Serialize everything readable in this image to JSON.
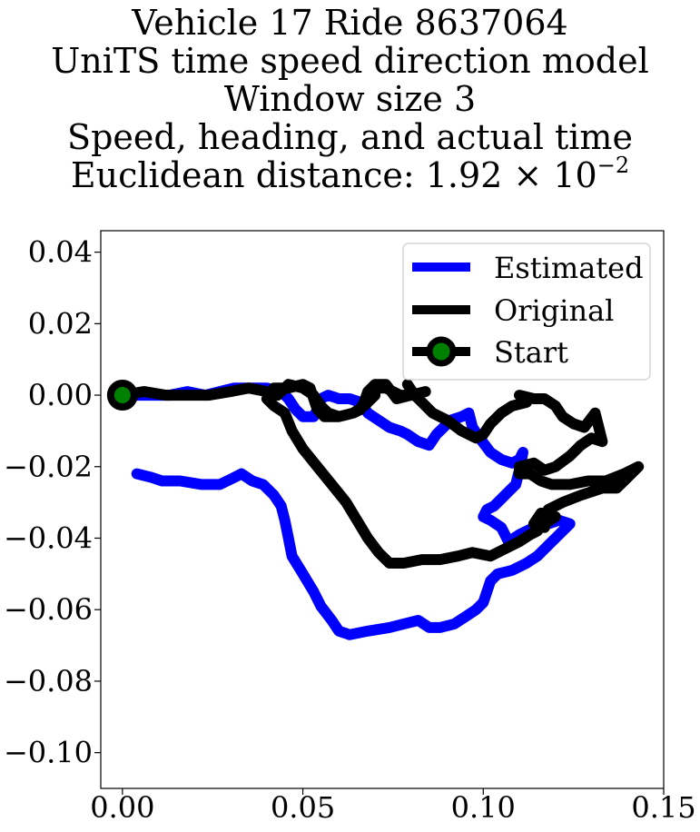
{
  "chart_data": {
    "type": "line",
    "title_lines": [
      "Vehicle 17 Ride 8637064",
      "UniTS time speed direction model",
      "Window size 3",
      "Speed, heading, and actual time"
    ],
    "distance_label": "Euclidean distance: 1.92 × 10",
    "distance_exponent": "−2",
    "xlim": [
      -0.006,
      0.15
    ],
    "ylim": [
      -0.11,
      0.046
    ],
    "xticks": [
      0.0,
      0.05,
      0.1,
      0.15
    ],
    "xtick_labels": [
      "0.00",
      "0.05",
      "0.10",
      "0.15"
    ],
    "yticks": [
      0.04,
      0.02,
      0.0,
      -0.02,
      -0.04,
      -0.06,
      -0.08,
      -0.1
    ],
    "ytick_labels": [
      "0.04",
      "0.02",
      "0.00",
      "−0.02",
      "−0.04",
      "−0.06",
      "−0.08",
      "−0.10"
    ],
    "grid": false,
    "legend_position": "top-right",
    "series": [
      {
        "name": "Estimated",
        "color": "#0000ff",
        "points": [
          [
            0.004,
            -0.022
          ],
          [
            0.008,
            -0.023
          ],
          [
            0.011,
            -0.024
          ],
          [
            0.016,
            -0.024
          ],
          [
            0.022,
            -0.025
          ],
          [
            0.027,
            -0.025
          ],
          [
            0.031,
            -0.023
          ],
          [
            0.033,
            -0.022
          ],
          [
            0.036,
            -0.024
          ],
          [
            0.039,
            -0.025
          ],
          [
            0.042,
            -0.028
          ],
          [
            0.044,
            -0.031
          ],
          [
            0.045,
            -0.035
          ],
          [
            0.046,
            -0.04
          ],
          [
            0.047,
            -0.045
          ],
          [
            0.05,
            -0.05
          ],
          [
            0.053,
            -0.055
          ],
          [
            0.055,
            -0.059
          ],
          [
            0.058,
            -0.063
          ],
          [
            0.06,
            -0.066
          ],
          [
            0.063,
            -0.067
          ],
          [
            0.068,
            -0.066
          ],
          [
            0.074,
            -0.065
          ],
          [
            0.078,
            -0.064
          ],
          [
            0.082,
            -0.063
          ],
          [
            0.085,
            -0.065
          ],
          [
            0.088,
            -0.065
          ],
          [
            0.092,
            -0.064
          ],
          [
            0.095,
            -0.062
          ],
          [
            0.098,
            -0.06
          ],
          [
            0.1,
            -0.058
          ],
          [
            0.101,
            -0.055
          ],
          [
            0.102,
            -0.052
          ],
          [
            0.104,
            -0.05
          ],
          [
            0.108,
            -0.049
          ],
          [
            0.112,
            -0.047
          ],
          [
            0.115,
            -0.045
          ],
          [
            0.118,
            -0.042
          ],
          [
            0.12,
            -0.04
          ],
          [
            0.124,
            -0.036
          ],
          [
            0.121,
            -0.035
          ],
          [
            0.118,
            -0.036
          ],
          [
            0.114,
            -0.037
          ],
          [
            0.11,
            -0.039
          ],
          [
            0.107,
            -0.041
          ],
          [
            0.105,
            -0.037
          ],
          [
            0.102,
            -0.035
          ],
          [
            0.1,
            -0.034
          ],
          [
            0.101,
            -0.032
          ],
          [
            0.103,
            -0.031
          ],
          [
            0.105,
            -0.029
          ],
          [
            0.107,
            -0.027
          ],
          [
            0.109,
            -0.025
          ],
          [
            0.11,
            -0.021
          ],
          [
            0.111,
            -0.016
          ],
          [
            0.11,
            -0.018
          ],
          [
            0.108,
            -0.019
          ],
          [
            0.105,
            -0.018
          ],
          [
            0.102,
            -0.016
          ],
          [
            0.099,
            -0.012
          ],
          [
            0.097,
            -0.009
          ],
          [
            0.096,
            -0.005
          ],
          [
            0.094,
            -0.006
          ],
          [
            0.091,
            -0.007
          ],
          [
            0.089,
            -0.009
          ],
          [
            0.087,
            -0.011
          ],
          [
            0.085,
            -0.014
          ],
          [
            0.082,
            -0.013
          ],
          [
            0.079,
            -0.011
          ],
          [
            0.077,
            -0.01
          ],
          [
            0.074,
            -0.009
          ],
          [
            0.071,
            -0.007
          ],
          [
            0.068,
            -0.005
          ],
          [
            0.066,
            -0.002
          ],
          [
            0.063,
            -0.001
          ],
          [
            0.06,
            -0.001
          ],
          [
            0.057,
            -0.0
          ],
          [
            0.055,
            -0.001
          ],
          [
            0.054,
            -0.004
          ],
          [
            0.053,
            -0.006
          ],
          [
            0.05,
            -0.006
          ],
          [
            0.048,
            -0.004
          ],
          [
            0.046,
            -0.001
          ],
          [
            0.044,
            0.001
          ],
          [
            0.04,
            0.002
          ],
          [
            0.035,
            0.002
          ],
          [
            0.031,
            0.002
          ],
          [
            0.027,
            0.001
          ],
          [
            0.023,
            0.0
          ],
          [
            0.018,
            0.001
          ],
          [
            0.013,
            0.0
          ],
          [
            0.008,
            0.0
          ],
          [
            0.004,
            0.0
          ],
          [
            0.0,
            0.0
          ]
        ]
      },
      {
        "name": "Original",
        "color": "#000000",
        "points": [
          [
            0.0,
            0.0
          ],
          [
            0.006,
            0.001
          ],
          [
            0.012,
            0.0
          ],
          [
            0.018,
            0.0
          ],
          [
            0.024,
            0.0
          ],
          [
            0.03,
            0.001
          ],
          [
            0.035,
            0.002
          ],
          [
            0.04,
            0.001
          ],
          [
            0.043,
            0.0
          ],
          [
            0.046,
            0.003
          ],
          [
            0.05,
            0.002
          ],
          [
            0.053,
            0.0
          ],
          [
            0.055,
            -0.003
          ],
          [
            0.057,
            -0.005
          ],
          [
            0.06,
            -0.006
          ],
          [
            0.064,
            -0.005
          ],
          [
            0.067,
            -0.003
          ],
          [
            0.07,
            -0.0
          ],
          [
            0.07,
            0.002
          ],
          [
            0.073,
            0.002
          ],
          [
            0.077,
            0.0
          ],
          [
            0.081,
            0.0
          ],
          [
            0.084,
            0.001
          ],
          [
            0.08,
            0.0
          ],
          [
            0.076,
            -0.001
          ],
          [
            0.073,
            0.003
          ],
          [
            0.07,
            0.003
          ],
          [
            0.068,
            0.001
          ],
          [
            0.067,
            -0.002
          ],
          [
            0.066,
            -0.004
          ],
          [
            0.064,
            -0.005
          ],
          [
            0.06,
            -0.006
          ],
          [
            0.056,
            -0.006
          ],
          [
            0.054,
            -0.004
          ],
          [
            0.053,
            -0.001
          ],
          [
            0.052,
            0.002
          ],
          [
            0.05,
            0.003
          ],
          [
            0.046,
            0.002
          ],
          [
            0.042,
            0.002
          ],
          [
            0.04,
            -0.001
          ],
          [
            0.042,
            -0.003
          ],
          [
            0.045,
            -0.005
          ],
          [
            0.047,
            -0.01
          ],
          [
            0.05,
            -0.015
          ],
          [
            0.054,
            -0.02
          ],
          [
            0.058,
            -0.025
          ],
          [
            0.062,
            -0.03
          ],
          [
            0.065,
            -0.035
          ],
          [
            0.068,
            -0.04
          ],
          [
            0.071,
            -0.044
          ],
          [
            0.074,
            -0.047
          ],
          [
            0.078,
            -0.047
          ],
          [
            0.083,
            -0.046
          ],
          [
            0.088,
            -0.046
          ],
          [
            0.093,
            -0.045
          ],
          [
            0.097,
            -0.044
          ],
          [
            0.102,
            -0.045
          ],
          [
            0.106,
            -0.043
          ],
          [
            0.11,
            -0.041
          ],
          [
            0.113,
            -0.039
          ],
          [
            0.115,
            -0.038
          ],
          [
            0.117,
            -0.035
          ],
          [
            0.12,
            -0.034
          ],
          [
            0.117,
            -0.036
          ],
          [
            0.116,
            -0.033
          ],
          [
            0.114,
            -0.036
          ],
          [
            0.117,
            -0.037
          ],
          [
            0.118,
            -0.032
          ],
          [
            0.122,
            -0.03
          ],
          [
            0.127,
            -0.028
          ],
          [
            0.133,
            -0.026
          ],
          [
            0.137,
            -0.026
          ],
          [
            0.14,
            -0.023
          ],
          [
            0.143,
            -0.02
          ],
          [
            0.139,
            -0.022
          ],
          [
            0.134,
            -0.024
          ],
          [
            0.129,
            -0.024
          ],
          [
            0.124,
            -0.025
          ],
          [
            0.119,
            -0.025
          ],
          [
            0.116,
            -0.024
          ],
          [
            0.113,
            -0.022
          ],
          [
            0.11,
            -0.022
          ],
          [
            0.11,
            -0.02
          ],
          [
            0.114,
            -0.019
          ],
          [
            0.117,
            -0.021
          ],
          [
            0.12,
            -0.02
          ],
          [
            0.124,
            -0.017
          ],
          [
            0.127,
            -0.014
          ],
          [
            0.13,
            -0.012
          ],
          [
            0.133,
            -0.013
          ],
          [
            0.132,
            -0.009
          ],
          [
            0.131,
            -0.005
          ],
          [
            0.128,
            -0.009
          ],
          [
            0.125,
            -0.008
          ],
          [
            0.122,
            -0.006
          ],
          [
            0.12,
            -0.003
          ],
          [
            0.117,
            -0.001
          ],
          [
            0.114,
            -0.001
          ],
          [
            0.11,
            0.0
          ],
          [
            0.112,
            -0.002
          ],
          [
            0.108,
            -0.003
          ],
          [
            0.105,
            -0.005
          ],
          [
            0.102,
            -0.008
          ],
          [
            0.1,
            -0.011
          ],
          [
            0.098,
            -0.012
          ],
          [
            0.094,
            -0.01
          ],
          [
            0.09,
            -0.007
          ],
          [
            0.086,
            -0.005
          ],
          [
            0.083,
            -0.002
          ],
          [
            0.081,
            0.0
          ],
          [
            0.079,
            0.003
          ]
        ]
      }
    ],
    "start_marker": {
      "name": "Start",
      "x": 0.0,
      "y": 0.0,
      "fill": "#008000",
      "edge": "#000000"
    }
  }
}
